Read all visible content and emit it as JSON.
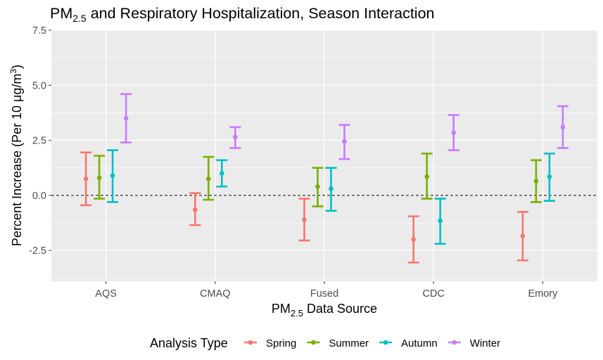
{
  "chart_data": {
    "type": "errorbar",
    "title": {
      "prefix": "PM",
      "sub": "2.5",
      "suffix": " and Respiratory Hospitalization, Season Interaction"
    },
    "xlabel": {
      "prefix": "PM",
      "sub": "2.5",
      "suffix": " Data Source"
    },
    "ylabel": {
      "prefix": "Percent Increase (Per 10 μg/m",
      "sup": "3",
      "suffix": ")"
    },
    "categories": [
      "AQS",
      "CMAQ",
      "Fused",
      "CDC",
      "Emory"
    ],
    "y_ticks": [
      -2.5,
      0.0,
      2.5,
      5.0,
      7.5
    ],
    "y_tick_labels": [
      "-2.5",
      "0.0",
      "2.5",
      "5.0",
      "7.5"
    ],
    "ylim": [
      -3.9,
      7.5
    ],
    "reference_line_y": 0,
    "grid": true,
    "legend_title": "Analysis Type",
    "legend_position": "bottom",
    "series": [
      {
        "name": "Spring",
        "color": "#F8766D",
        "estimates": [
          0.75,
          -0.65,
          -1.1,
          -2.0,
          -1.85
        ],
        "lower": [
          -0.45,
          -1.35,
          -2.05,
          -3.05,
          -2.95
        ],
        "upper": [
          1.95,
          0.1,
          -0.15,
          -0.95,
          -0.75
        ]
      },
      {
        "name": "Summer",
        "color": "#7CAE00",
        "estimates": [
          0.8,
          0.75,
          0.4,
          0.85,
          0.65
        ],
        "lower": [
          -0.15,
          -0.2,
          -0.5,
          -0.15,
          -0.3
        ],
        "upper": [
          1.8,
          1.75,
          1.25,
          1.9,
          1.6
        ]
      },
      {
        "name": "Autumn",
        "color": "#00BFC4",
        "estimates": [
          0.9,
          1.0,
          0.3,
          -1.15,
          0.85
        ],
        "lower": [
          -0.3,
          0.4,
          -0.7,
          -2.2,
          -0.25
        ],
        "upper": [
          2.05,
          1.6,
          1.25,
          -0.15,
          1.9
        ]
      },
      {
        "name": "Winter",
        "color": "#C77CFF",
        "estimates": [
          3.5,
          2.65,
          2.45,
          2.85,
          3.1
        ],
        "lower": [
          2.4,
          2.15,
          1.65,
          2.05,
          2.15
        ],
        "upper": [
          4.6,
          3.1,
          3.2,
          3.65,
          4.05
        ]
      }
    ]
  }
}
